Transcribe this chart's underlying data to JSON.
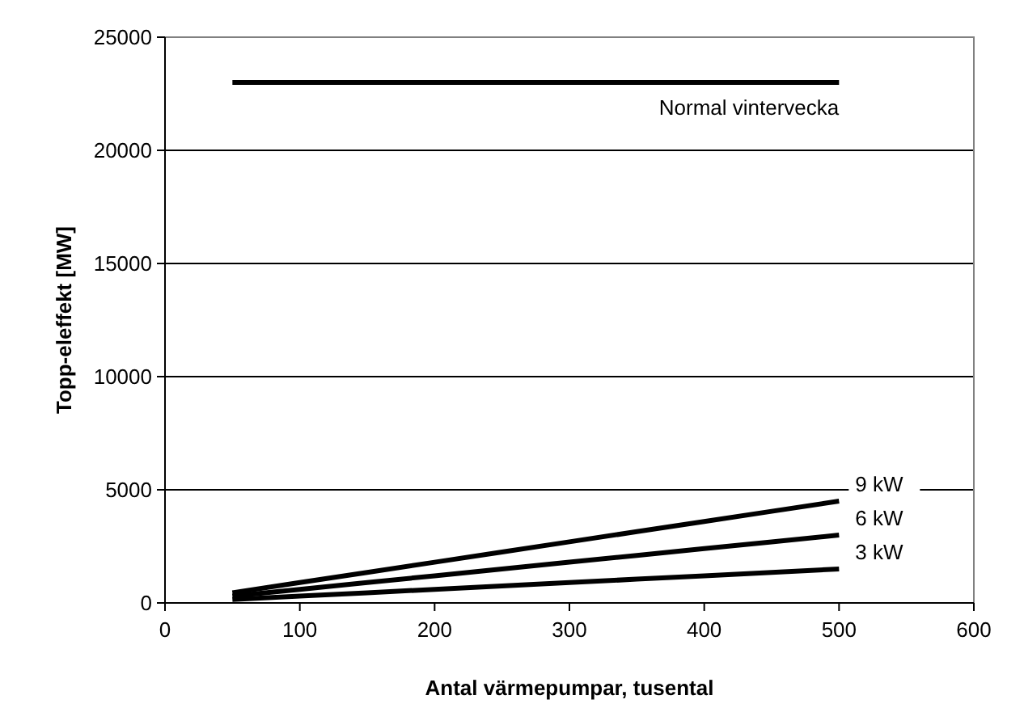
{
  "chart_data": {
    "type": "line",
    "xlabel": "Antal värmepumpar, tusental",
    "ylabel": "Topp-eleffekt [MW]",
    "x": [
      50,
      100,
      150,
      200,
      250,
      300,
      350,
      400,
      450,
      500
    ],
    "series": [
      {
        "name": "Normal vintervecka",
        "color": "#000000",
        "values": [
          23000,
          23000,
          23000,
          23000,
          23000,
          23000,
          23000,
          23000,
          23000,
          23000
        ]
      },
      {
        "name": "9 kW",
        "color": "#000000",
        "values": [
          450,
          900,
          1350,
          1800,
          2250,
          2700,
          3150,
          3600,
          4050,
          4500
        ]
      },
      {
        "name": "6 kW",
        "color": "#000000",
        "values": [
          300,
          600,
          900,
          1200,
          1500,
          1800,
          2100,
          2400,
          2700,
          3000
        ]
      },
      {
        "name": "3 kW",
        "color": "#000000",
        "values": [
          150,
          300,
          450,
          600,
          750,
          900,
          1050,
          1200,
          1350,
          1500
        ]
      }
    ],
    "xlim": [
      0,
      600
    ],
    "xticks": [
      0,
      100,
      200,
      300,
      400,
      500,
      600
    ],
    "ylim": [
      0,
      25000
    ],
    "yticks": [
      0,
      5000,
      10000,
      15000,
      20000,
      25000
    ],
    "grid": "y",
    "marker": "none",
    "line_style": "solid"
  }
}
